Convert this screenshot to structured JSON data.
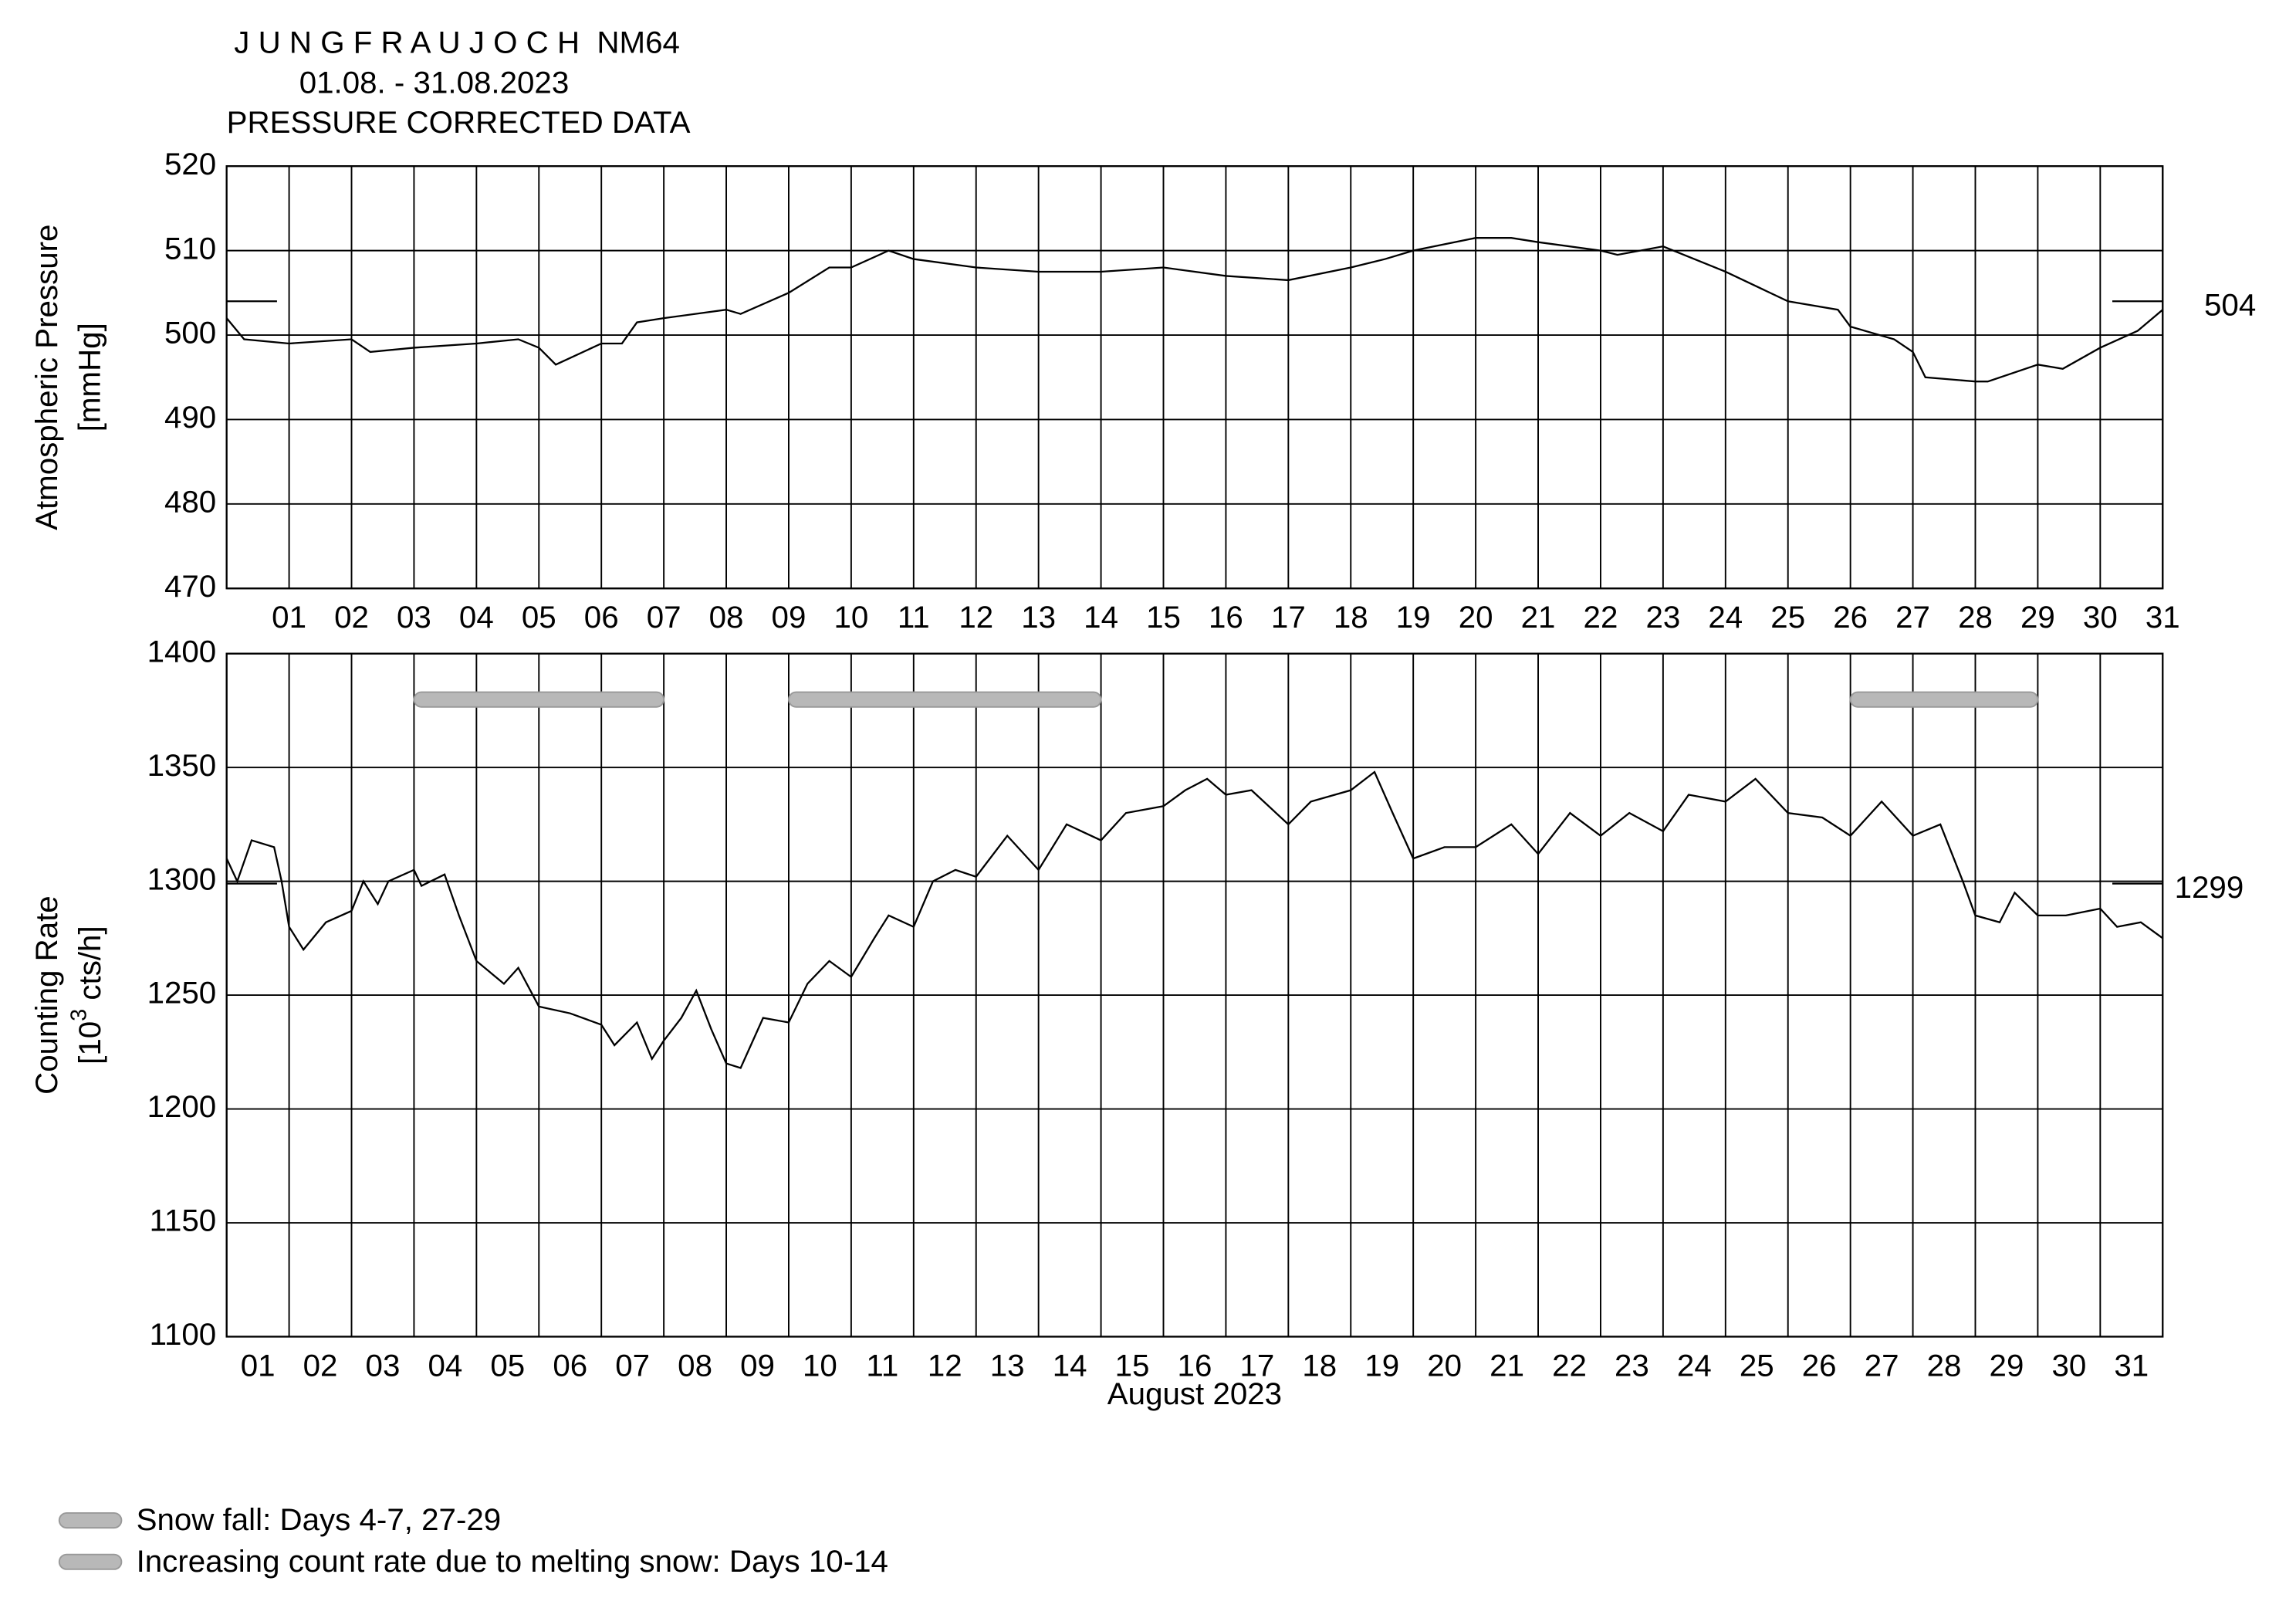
{
  "header": {
    "lines": [
      "J U N G F R A U J O C H  NM64",
      "01.08. - 31.08.2023",
      "PRESSURE CORRECTED DATA"
    ]
  },
  "chart_data": [
    {
      "type": "line",
      "ylabel": [
        "Atmospheric Pressure",
        "[mmHg]"
      ],
      "color": "#000000",
      "grid": true,
      "xlim": [
        1,
        32
      ],
      "ylim": [
        470,
        520
      ],
      "yticks": [
        470,
        480,
        490,
        500,
        510,
        520
      ],
      "xtick_labels": "at-tick",
      "xticks": [
        {
          "value": 2,
          "label": "01"
        },
        {
          "value": 3,
          "label": "02"
        },
        {
          "value": 4,
          "label": "03"
        },
        {
          "value": 5,
          "label": "04"
        },
        {
          "value": 6,
          "label": "05"
        },
        {
          "value": 7,
          "label": "06"
        },
        {
          "value": 8,
          "label": "07"
        },
        {
          "value": 9,
          "label": "08"
        },
        {
          "value": 10,
          "label": "09"
        },
        {
          "value": 11,
          "label": "10"
        },
        {
          "value": 12,
          "label": "11"
        },
        {
          "value": 13,
          "label": "12"
        },
        {
          "value": 14,
          "label": "13"
        },
        {
          "value": 15,
          "label": "14"
        },
        {
          "value": 16,
          "label": "15"
        },
        {
          "value": 17,
          "label": "16"
        },
        {
          "value": 18,
          "label": "17"
        },
        {
          "value": 19,
          "label": "18"
        },
        {
          "value": 20,
          "label": "19"
        },
        {
          "value": 21,
          "label": "20"
        },
        {
          "value": 22,
          "label": "21"
        },
        {
          "value": 23,
          "label": "22"
        },
        {
          "value": 24,
          "label": "23"
        },
        {
          "value": 25,
          "label": "24"
        },
        {
          "value": 26,
          "label": "25"
        },
        {
          "value": 27,
          "label": "26"
        },
        {
          "value": 28,
          "label": "27"
        },
        {
          "value": 29,
          "label": "28"
        },
        {
          "value": 30,
          "label": "29"
        },
        {
          "value": 31,
          "label": "30"
        },
        {
          "value": 32,
          "label": "31"
        }
      ],
      "reference": 504,
      "x": [
        1,
        1.28,
        2,
        3,
        3.3,
        4,
        5,
        5.67,
        6,
        6.27,
        7,
        7.33,
        7.57,
        8,
        9,
        9.23,
        10,
        10.65,
        11,
        11.6,
        12,
        13,
        14,
        15,
        16,
        17,
        18,
        19,
        19.55,
        20,
        21,
        21.57,
        22,
        23,
        23.27,
        24,
        25,
        26,
        26.8,
        27,
        27.7,
        28,
        28.2,
        29,
        29.2,
        30,
        30.4,
        31,
        31.6,
        32
      ],
      "values": [
        502,
        499.5,
        499,
        499.5,
        498,
        498.5,
        499,
        499.5,
        498.5,
        496.5,
        499,
        499,
        501.5,
        502,
        503,
        502.5,
        505,
        508,
        508,
        510,
        509,
        508,
        507.5,
        507.5,
        508,
        507,
        506.5,
        508,
        509,
        510,
        511.5,
        511.5,
        511,
        510,
        509.5,
        510.5,
        507.5,
        504,
        503,
        501,
        499.5,
        498,
        495,
        494.5,
        494.5,
        496.5,
        496,
        498.5,
        500.5,
        503
      ]
    },
    {
      "type": "line",
      "ylabel": [
        "Counting Rate",
        [
          "[10",
          "3",
          " cts/h]"
        ]
      ],
      "xlabel": "August 2023",
      "color": "#000000",
      "grid": true,
      "xlim": [
        1,
        32
      ],
      "ylim": [
        1100,
        1400
      ],
      "yticks": [
        1100,
        1150,
        1200,
        1250,
        1300,
        1350,
        1400
      ],
      "xtick_labels": "between",
      "xticks": [
        {
          "value": 1,
          "label": "01"
        },
        {
          "value": 2,
          "label": "02"
        },
        {
          "value": 3,
          "label": "03"
        },
        {
          "value": 4,
          "label": "04"
        },
        {
          "value": 5,
          "label": "05"
        },
        {
          "value": 6,
          "label": "06"
        },
        {
          "value": 7,
          "label": "07"
        },
        {
          "value": 8,
          "label": "08"
        },
        {
          "value": 9,
          "label": "09"
        },
        10,
        11,
        12,
        13,
        14,
        15,
        16,
        17,
        18,
        19,
        20,
        21,
        22,
        23,
        24,
        25,
        26,
        27,
        28,
        29,
        30,
        31
      ],
      "reference": 1299,
      "bands": [
        {
          "start": 4,
          "end": 8,
          "color": "#b8b8b8"
        },
        {
          "start": 10,
          "end": 15,
          "color": "#b8b8b8"
        },
        {
          "start": 27,
          "end": 30,
          "color": "#b8b8b8"
        }
      ],
      "x": [
        1,
        1.17,
        1.4,
        1.76,
        1.88,
        2,
        2.23,
        2.59,
        3,
        3.19,
        3.42,
        3.59,
        4,
        4.12,
        4.49,
        4.72,
        5,
        5.44,
        5.67,
        6,
        6.5,
        7,
        7.21,
        7.57,
        7.81,
        8,
        8.28,
        8.52,
        8.76,
        9,
        9.23,
        9.59,
        10,
        10.3,
        10.65,
        11,
        11.37,
        11.6,
        12,
        12.31,
        12.67,
        13,
        13.5,
        14,
        14.45,
        15,
        15.4,
        16,
        16.35,
        16.7,
        17,
        17.41,
        18,
        18.36,
        19,
        19.38,
        19.67,
        20,
        20.5,
        21,
        21.57,
        22,
        22.51,
        23,
        23.46,
        24,
        24.41,
        25,
        25.48,
        26,
        26.55,
        27,
        27.5,
        28,
        28.44,
        28.8,
        29,
        29.39,
        29.63,
        30,
        30.45,
        31,
        31.27,
        31.65,
        32
      ],
      "values": [
        1310,
        1300,
        1318,
        1315,
        1300,
        1280,
        1270,
        1282,
        1287,
        1300,
        1290,
        1300,
        1305,
        1298,
        1303,
        1285,
        1265,
        1255,
        1262,
        1245,
        1242,
        1237,
        1228,
        1238,
        1222,
        1230,
        1240,
        1252,
        1235,
        1220,
        1218,
        1240,
        1238,
        1255,
        1265,
        1258,
        1275,
        1285,
        1280,
        1300,
        1305,
        1302,
        1320,
        1305,
        1325,
        1318,
        1330,
        1333,
        1340,
        1345,
        1338,
        1340,
        1325,
        1335,
        1340,
        1348,
        1330,
        1310,
        1315,
        1315,
        1325,
        1312,
        1330,
        1320,
        1330,
        1322,
        1338,
        1335,
        1345,
        1330,
        1328,
        1320,
        1335,
        1320,
        1325,
        1300,
        1285,
        1282,
        1295,
        1285,
        1285,
        1288,
        1280,
        1282,
        1275
      ]
    }
  ],
  "notes": [
    "Snow fall: Days 4-7, 27-29",
    "Increasing count rate due to melting snow: Days 10-14"
  ]
}
